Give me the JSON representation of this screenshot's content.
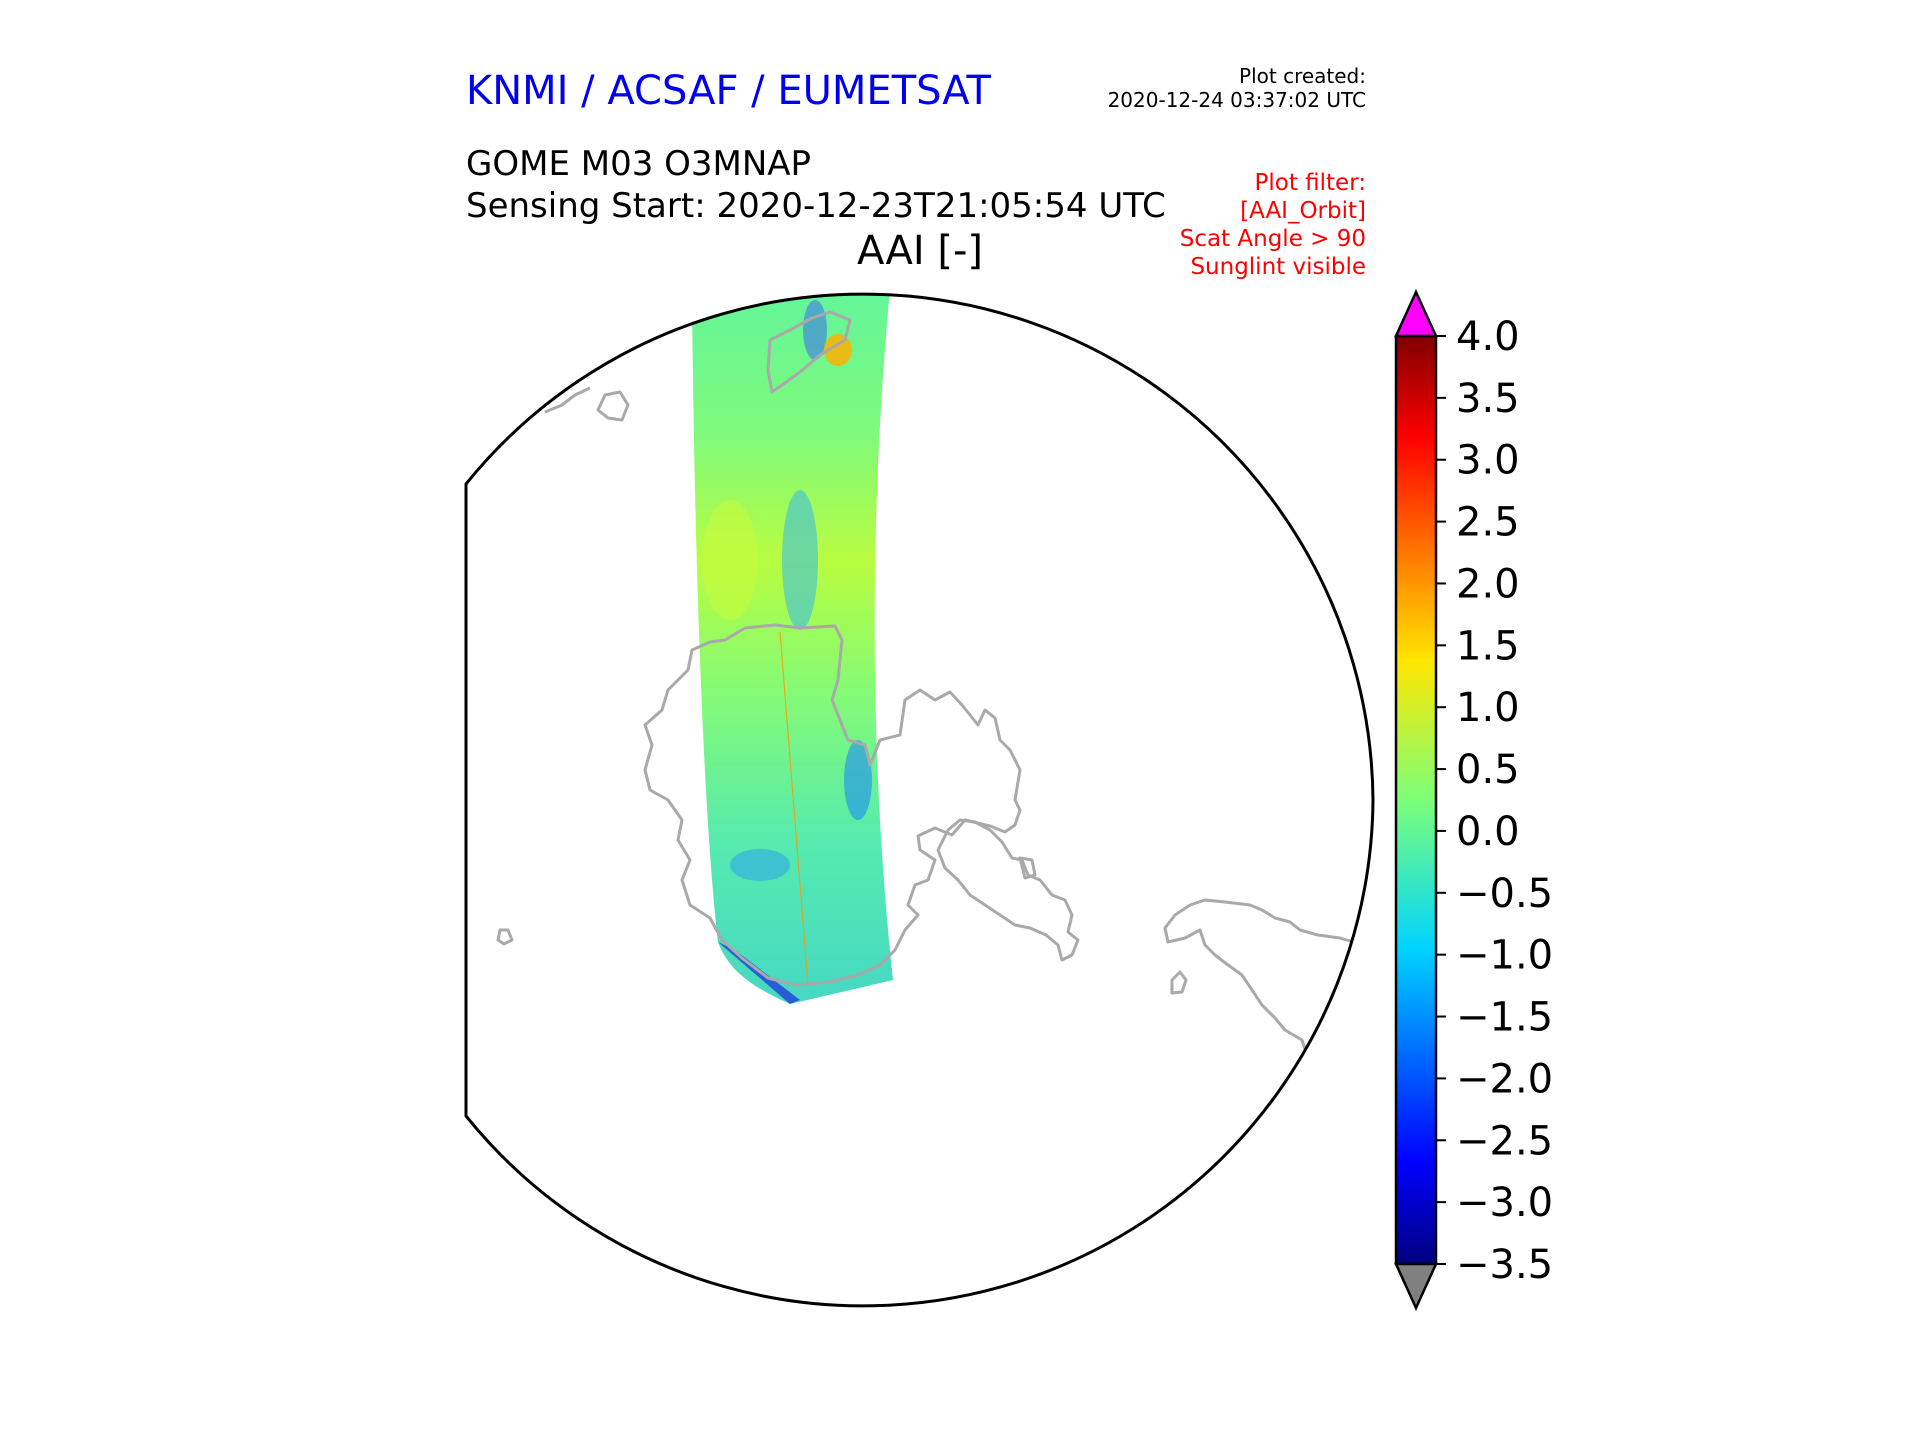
{
  "header": {
    "organisation": "KNMI / ACSAF / EUMETSAT",
    "plot_created_label": "Plot created:",
    "plot_created_time": "2020-12-24 03:37:02 UTC",
    "product": "GOME M03 O3MNAP",
    "sensing_start": "Sensing Start: 2020-12-23T21:05:54 UTC",
    "plot_title": "AAI [-]"
  },
  "plot_filter": {
    "title": "Plot filter:",
    "items": [
      "[AAI_Orbit]",
      "Scat Angle > 90",
      "Sunglint visible"
    ]
  },
  "colors": {
    "title_blue": "#0000ee",
    "filter_red": "#ff0000",
    "coastline": "#a9a9a9",
    "over_max": "#ff00ff",
    "under_min": "#808080"
  },
  "chart_data": {
    "type": "heatmap",
    "variable": "AAI [-]",
    "colormap": "jet",
    "vmin": -3.5,
    "vmax": 4.0,
    "extend": "both",
    "colorbar_ticks": [
      "4.0",
      "3.5",
      "3.0",
      "2.5",
      "2.0",
      "1.5",
      "1.0",
      "0.5",
      "0.0",
      "−0.5",
      "−1.0",
      "−1.5",
      "−2.0",
      "−2.5",
      "−3.0",
      "−3.5"
    ]
  }
}
